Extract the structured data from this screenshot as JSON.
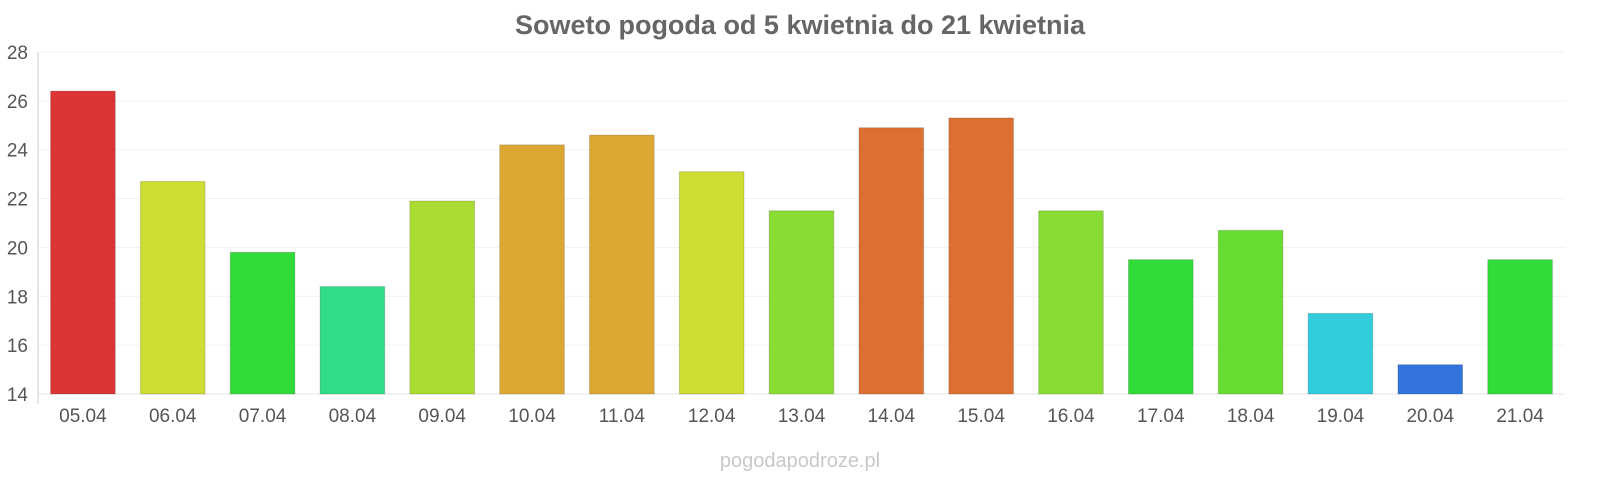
{
  "title": "Soweto pogoda od 5 kwietnia do 21 kwietnia",
  "watermark": "pogodapodroze.pl",
  "chart_data": {
    "type": "bar",
    "title": "Soweto pogoda od 5 kwietnia do 21 kwietnia",
    "xlabel": "",
    "ylabel": "",
    "categories": [
      "05.04",
      "06.04",
      "07.04",
      "08.04",
      "09.04",
      "10.04",
      "11.04",
      "12.04",
      "13.04",
      "14.04",
      "15.04",
      "16.04",
      "17.04",
      "18.04",
      "19.04",
      "20.04",
      "21.04"
    ],
    "values": [
      26.4,
      22.7,
      19.8,
      18.4,
      21.9,
      24.2,
      24.6,
      23.1,
      21.5,
      24.9,
      25.3,
      21.5,
      19.5,
      20.7,
      17.3,
      15.2,
      19.5
    ],
    "colors": [
      "#dc3535",
      "#cfdc32",
      "#32dc38",
      "#33dc88",
      "#aadc32",
      "#dca832",
      "#dca832",
      "#cfdc32",
      "#89dc32",
      "#dc7032",
      "#dc7032",
      "#89dc32",
      "#32dc38",
      "#69dc32",
      "#33ccdc",
      "#3373dc",
      "#32dc38"
    ],
    "ylim": [
      14,
      28
    ],
    "yticks": [
      14,
      16,
      18,
      20,
      22,
      24,
      26,
      28
    ],
    "grid": true,
    "legend": "none"
  }
}
